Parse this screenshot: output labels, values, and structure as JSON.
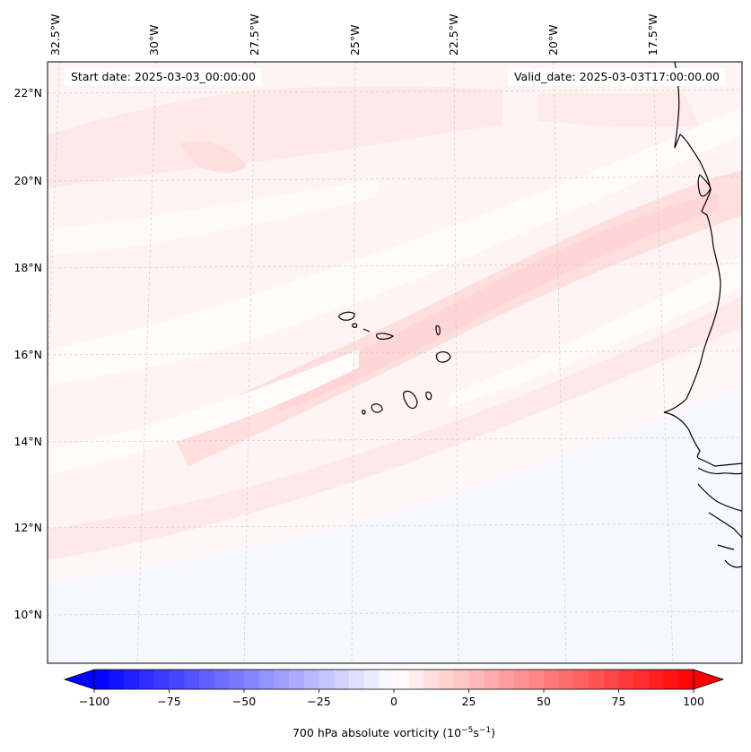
{
  "map": {
    "start_date": "Start date: 2025-03-03_00:00:00",
    "valid_date": "Valid_date: 2025-03-03T17:00:00.00",
    "lon_labels": [
      "32.5°W",
      "30°W",
      "27.5°W",
      "25°W",
      "22.5°W",
      "20°W",
      "17.5°W"
    ],
    "lat_labels": [
      "22°N",
      "20°N",
      "18°N",
      "16°N",
      "14°N",
      "12°N",
      "10°N"
    ],
    "field_colors": {
      "background": "#fff4f4",
      "light_red": "#ffe6e6",
      "lighter_red": "#ffdcdc",
      "near_white": "#fffafa",
      "light_blue": "#f6f7ff",
      "coastline": "#000000"
    }
  },
  "colorbar": {
    "label_main": "700 hPa absolute vorticity (10",
    "label_exp1": "−5",
    "label_mid": "s",
    "label_exp2": "−1",
    "label_end": ")",
    "ticks": [
      "−100",
      "−75",
      "−50",
      "−25",
      "0",
      "25",
      "50",
      "75",
      "100"
    ],
    "tick_values": [
      -100,
      -75,
      -50,
      -25,
      0,
      25,
      50,
      75,
      100
    ],
    "min": -100,
    "max": 100,
    "step": 5,
    "low_color": "#0000ff",
    "high_color": "#ff0000",
    "mid_color": "#ffffff"
  }
}
